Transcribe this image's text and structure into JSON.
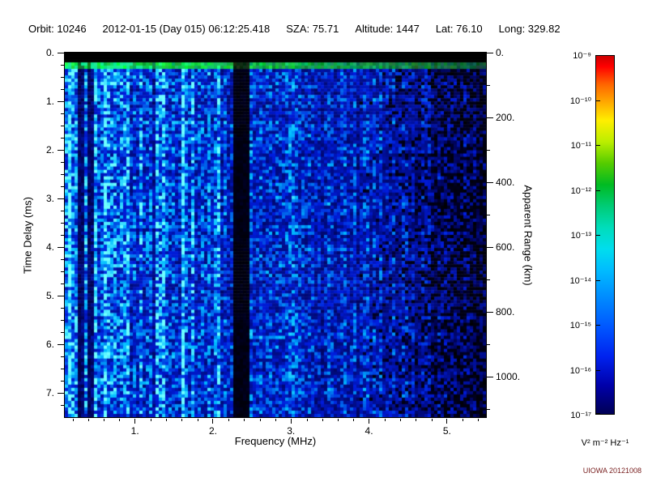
{
  "header": {
    "segments": [
      {
        "label": "Orbit:",
        "value": "10246"
      },
      {
        "label": "",
        "value": "2012-01-15 (Day 015) 06:12:25.418"
      },
      {
        "label": "SZA:",
        "value": "75.71"
      },
      {
        "label": "Altitude:",
        "value": "1447"
      },
      {
        "label": "Lat:",
        "value": "76.10"
      },
      {
        "label": "Long:",
        "value": "329.82"
      }
    ]
  },
  "chart_data": {
    "type": "heatmap",
    "title": "",
    "xlabel": "Frequency (MHz)",
    "ylabel": "Time Delay (ms)",
    "y2label": "Apparent Range (km)",
    "x_range_mhz": [
      0.1,
      5.5
    ],
    "y_range_ms": [
      0.0,
      7.5
    ],
    "y2_range_km": [
      0,
      1125
    ],
    "range_per_ms_km": 150,
    "grid": false,
    "legend_position": "right-colorbar",
    "x_ticks": [
      {
        "v": 1,
        "label": "1."
      },
      {
        "v": 2,
        "label": "2."
      },
      {
        "v": 3,
        "label": "3."
      },
      {
        "v": 4,
        "label": "4."
      },
      {
        "v": 5,
        "label": "5."
      }
    ],
    "x_minor_step_mhz": 0.2,
    "y_ticks": [
      {
        "v": 0,
        "label": "0."
      },
      {
        "v": 1,
        "label": "1."
      },
      {
        "v": 2,
        "label": "2."
      },
      {
        "v": 3,
        "label": "3."
      },
      {
        "v": 4,
        "label": "4."
      },
      {
        "v": 5,
        "label": "5."
      },
      {
        "v": 6,
        "label": "6."
      },
      {
        "v": 7,
        "label": "7."
      }
    ],
    "y_minor_step_ms": 0.25,
    "y2_ticks": [
      {
        "v": 0,
        "label": "0."
      },
      {
        "v": 200,
        "label": "200."
      },
      {
        "v": 400,
        "label": "400."
      },
      {
        "v": 600,
        "label": "600."
      },
      {
        "v": 800,
        "label": "800."
      },
      {
        "v": 1000,
        "label": "1000."
      }
    ],
    "y2_minor_step_km": 100,
    "features": {
      "transmit_blank_band_ms": [
        0.0,
        0.2
      ],
      "surface_echo_line_ms": [
        0.2,
        0.34
      ],
      "surface_echo_color": "#22bb44",
      "dark_vertical_bands": [
        {
          "mhz": [
            0.28,
            0.36
          ],
          "gain": 0.3
        },
        {
          "mhz": [
            0.4,
            0.46
          ],
          "gain": 0.35
        },
        {
          "mhz": [
            2.28,
            2.47
          ],
          "gain": 0.05
        }
      ],
      "bright_vertical_bands": [
        {
          "mhz": [
            0.1,
            0.28
          ],
          "gain": 1.3
        },
        {
          "mhz": [
            1.27,
            1.35
          ],
          "gain": 1.55
        }
      ],
      "noise_description": "diffuse blue noise field, brightest below 1 MHz with cyan vertical streaks, fading to dark blue with black speckle above 4 MHz"
    },
    "render": {
      "seed": 20121008,
      "cols": 130,
      "rows": 112
    }
  },
  "colorbar": {
    "tick_labels": [
      "10⁻⁹",
      "10⁻¹⁰",
      "10⁻¹¹",
      "10⁻¹²",
      "10⁻¹³",
      "10⁻¹⁴",
      "10⁻¹⁵",
      "10⁻¹⁶",
      "10⁻¹⁷"
    ],
    "unit_label": "V² m⁻² Hz⁻¹",
    "scale_min": "1e-17",
    "scale_max": "1e-9",
    "gradient_stops": [
      {
        "p": 0,
        "c": "#cc0000"
      },
      {
        "p": 3,
        "c": "#ff0000"
      },
      {
        "p": 8,
        "c": "#ff6600"
      },
      {
        "p": 13,
        "c": "#ffaa00"
      },
      {
        "p": 18,
        "c": "#ffee00"
      },
      {
        "p": 24,
        "c": "#bbee00"
      },
      {
        "p": 30,
        "c": "#55cc00"
      },
      {
        "p": 36,
        "c": "#00bb22"
      },
      {
        "p": 42,
        "c": "#00cc77"
      },
      {
        "p": 48,
        "c": "#00ddbb"
      },
      {
        "p": 54,
        "c": "#00ddee"
      },
      {
        "p": 60,
        "c": "#00bbff"
      },
      {
        "p": 68,
        "c": "#0088ff"
      },
      {
        "p": 76,
        "c": "#0055ff"
      },
      {
        "p": 84,
        "c": "#0022ee"
      },
      {
        "p": 92,
        "c": "#0000aa"
      },
      {
        "p": 100,
        "c": "#000055"
      }
    ]
  },
  "credit": "UIOWA 20121008",
  "colors": {
    "credit": "#7a2222",
    "frame": "#000000",
    "background": "#ffffff"
  }
}
